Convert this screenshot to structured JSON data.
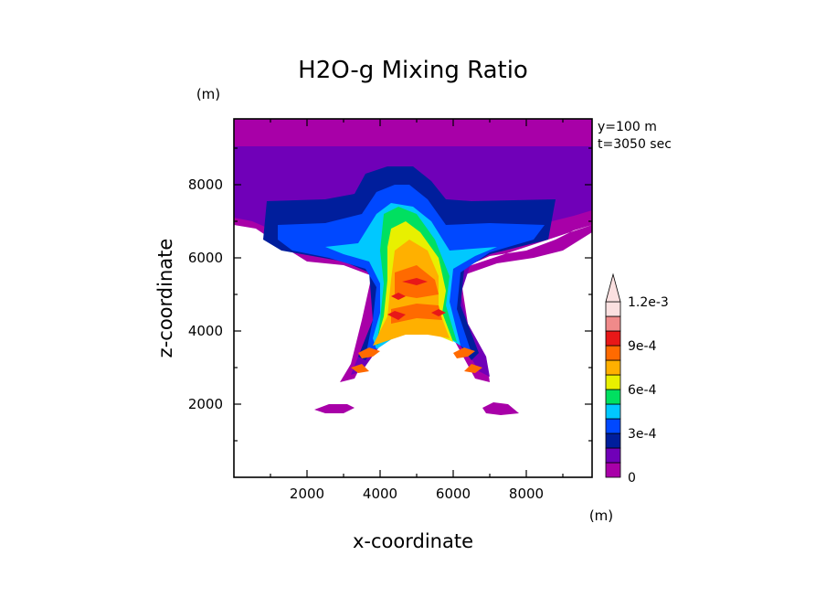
{
  "chart_data": {
    "type": "heatmap",
    "title": "H2O-g Mixing Ratio",
    "xlabel": "x-coordinate",
    "ylabel": "z-coordinate",
    "x_unit": "(m)",
    "y_unit": "(m)",
    "xlim": [
      0,
      9800
    ],
    "ylim": [
      0,
      9800
    ],
    "x_ticks": [
      "2000",
      "4000",
      "6000",
      "8000"
    ],
    "y_ticks": [
      "2000",
      "4000",
      "6000",
      "8000"
    ],
    "annotations": [
      "y=100 m",
      "t=3050 sec"
    ],
    "colorbar": {
      "levels": [
        0,
        0.00015,
        0.0003,
        0.00045,
        0.0006,
        0.00075,
        0.0009,
        0.00105,
        0.0012
      ],
      "tick_labels": [
        "0",
        "3e-4",
        "6e-4",
        "9e-4",
        "1.2e-3"
      ],
      "colors": [
        "#a800a8",
        "#7000b8",
        "#001e9c",
        "#0048ff",
        "#00c8ff",
        "#00e060",
        "#e8f000",
        "#ffb000",
        "#ff6a00",
        "#e81818",
        "#f08a8a",
        "#fbe0e0"
      ]
    },
    "regions": [
      {
        "level": 0,
        "points": [
          [
            0,
            9800
          ],
          [
            9800,
            9800
          ],
          [
            9800,
            6900
          ],
          [
            9300,
            6750
          ],
          [
            8800,
            6500
          ],
          [
            8000,
            6200
          ],
          [
            7000,
            6050
          ],
          [
            6200,
            5700
          ],
          [
            6000,
            3800
          ],
          [
            6600,
            2700
          ],
          [
            7000,
            2600
          ],
          [
            6900,
            3300
          ],
          [
            6400,
            4200
          ],
          [
            6200,
            5500
          ],
          [
            7200,
            5850
          ],
          [
            8200,
            6000
          ],
          [
            9000,
            6200
          ],
          [
            9800,
            6700
          ],
          [
            9800,
            6900
          ],
          [
            6200,
            5700
          ],
          [
            5400,
            5800
          ],
          [
            4400,
            5800
          ],
          [
            3800,
            5650
          ],
          [
            3500,
            4300
          ],
          [
            3200,
            3100
          ],
          [
            2900,
            2600
          ],
          [
            3300,
            2700
          ],
          [
            3700,
            3500
          ],
          [
            4000,
            4700
          ],
          [
            3800,
            5500
          ],
          [
            3000,
            5800
          ],
          [
            2000,
            5900
          ],
          [
            1200,
            6400
          ],
          [
            600,
            6800
          ],
          [
            0,
            6900
          ]
        ]
      },
      {
        "level": 0,
        "points": [
          [
            2200,
            1850
          ],
          [
            2600,
            2000
          ],
          [
            3100,
            2000
          ],
          [
            3300,
            1900
          ],
          [
            3000,
            1750
          ],
          [
            2500,
            1750
          ]
        ]
      },
      {
        "level": 0,
        "points": [
          [
            6800,
            1900
          ],
          [
            7100,
            2050
          ],
          [
            7500,
            2000
          ],
          [
            7800,
            1750
          ],
          [
            7300,
            1700
          ],
          [
            6900,
            1750
          ]
        ]
      },
      {
        "level": 1,
        "points": [
          [
            0,
            9050
          ],
          [
            9800,
            9050
          ],
          [
            9800,
            7300
          ],
          [
            9300,
            7150
          ],
          [
            8700,
            7000
          ],
          [
            8000,
            6600
          ],
          [
            7300,
            6200
          ],
          [
            6500,
            5900
          ],
          [
            6200,
            5000
          ],
          [
            6400,
            4200
          ],
          [
            6900,
            3300
          ],
          [
            7000,
            2750
          ],
          [
            6700,
            2900
          ],
          [
            6300,
            3600
          ],
          [
            5900,
            4100
          ],
          [
            5400,
            4300
          ],
          [
            4900,
            4300
          ],
          [
            4400,
            4100
          ],
          [
            4000,
            3600
          ],
          [
            3500,
            2900
          ],
          [
            3200,
            2800
          ],
          [
            3400,
            3300
          ],
          [
            3800,
            4200
          ],
          [
            3900,
            5000
          ],
          [
            3700,
            5700
          ],
          [
            3000,
            6000
          ],
          [
            2000,
            6100
          ],
          [
            1200,
            6700
          ],
          [
            500,
            7000
          ],
          [
            0,
            7100
          ]
        ]
      },
      {
        "level": 2,
        "points": [
          [
            900,
            7550
          ],
          [
            2500,
            7600
          ],
          [
            3300,
            7750
          ],
          [
            3600,
            8300
          ],
          [
            4200,
            8500
          ],
          [
            4900,
            8500
          ],
          [
            5400,
            8100
          ],
          [
            5800,
            7600
          ],
          [
            6500,
            7550
          ],
          [
            8800,
            7600
          ],
          [
            8600,
            6500
          ],
          [
            7000,
            6100
          ],
          [
            6300,
            5700
          ],
          [
            6200,
            4700
          ],
          [
            6700,
            3400
          ],
          [
            6500,
            3200
          ],
          [
            5900,
            4000
          ],
          [
            5300,
            4200
          ],
          [
            4600,
            4200
          ],
          [
            4000,
            3800
          ],
          [
            3600,
            3200
          ],
          [
            3400,
            3300
          ],
          [
            3800,
            4300
          ],
          [
            3700,
            5600
          ],
          [
            3000,
            5900
          ],
          [
            1300,
            6200
          ],
          [
            800,
            6500
          ]
        ]
      },
      {
        "level": 3,
        "points": [
          [
            1200,
            6900
          ],
          [
            2500,
            6950
          ],
          [
            3500,
            7200
          ],
          [
            3900,
            7800
          ],
          [
            4400,
            8000
          ],
          [
            4800,
            8000
          ],
          [
            5300,
            7600
          ],
          [
            5800,
            6900
          ],
          [
            7000,
            6950
          ],
          [
            8500,
            6900
          ],
          [
            8200,
            6500
          ],
          [
            7000,
            6150
          ],
          [
            6200,
            5600
          ],
          [
            6100,
            4600
          ],
          [
            6500,
            3400
          ],
          [
            5900,
            3800
          ],
          [
            5300,
            4050
          ],
          [
            4700,
            4050
          ],
          [
            4100,
            3700
          ],
          [
            3600,
            3300
          ],
          [
            3800,
            4300
          ],
          [
            3900,
            5200
          ],
          [
            3600,
            5700
          ],
          [
            2600,
            6000
          ],
          [
            1600,
            6200
          ],
          [
            1200,
            6500
          ]
        ]
      },
      {
        "level": 4,
        "points": [
          [
            2500,
            6300
          ],
          [
            3400,
            6400
          ],
          [
            3900,
            7200
          ],
          [
            4300,
            7500
          ],
          [
            4900,
            7400
          ],
          [
            5400,
            7000
          ],
          [
            5900,
            6200
          ],
          [
            7200,
            6300
          ],
          [
            6600,
            6050
          ],
          [
            6000,
            5700
          ],
          [
            5900,
            4800
          ],
          [
            6200,
            3600
          ],
          [
            5700,
            3900
          ],
          [
            5100,
            4100
          ],
          [
            4500,
            3900
          ],
          [
            3900,
            3500
          ],
          [
            3800,
            3800
          ],
          [
            4000,
            4500
          ],
          [
            4000,
            5300
          ],
          [
            3700,
            5900
          ],
          [
            3000,
            6100
          ]
        ]
      },
      {
        "level": 5,
        "points": [
          [
            4100,
            7200
          ],
          [
            4500,
            7400
          ],
          [
            5000,
            7200
          ],
          [
            5500,
            6500
          ],
          [
            5900,
            5500
          ],
          [
            5800,
            4700
          ],
          [
            6100,
            3700
          ],
          [
            5500,
            4000
          ],
          [
            4900,
            4100
          ],
          [
            4300,
            3900
          ],
          [
            3900,
            3600
          ],
          [
            4000,
            4300
          ],
          [
            4100,
            5300
          ],
          [
            4000,
            6200
          ]
        ]
      },
      {
        "level": 6,
        "points": [
          [
            4300,
            6800
          ],
          [
            4700,
            7000
          ],
          [
            5100,
            6700
          ],
          [
            5600,
            6000
          ],
          [
            5800,
            5100
          ],
          [
            5700,
            4500
          ],
          [
            6000,
            3700
          ],
          [
            5400,
            3950
          ],
          [
            4800,
            4000
          ],
          [
            4200,
            3800
          ],
          [
            3900,
            3700
          ],
          [
            4100,
            4400
          ],
          [
            4200,
            5400
          ],
          [
            4200,
            6300
          ]
        ]
      },
      {
        "level": 7,
        "points": [
          [
            4400,
            6200
          ],
          [
            4800,
            6500
          ],
          [
            5300,
            6200
          ],
          [
            5600,
            5500
          ],
          [
            5600,
            4600
          ],
          [
            5900,
            3800
          ],
          [
            5300,
            3900
          ],
          [
            4700,
            3900
          ],
          [
            4100,
            3700
          ],
          [
            3800,
            3600
          ],
          [
            4200,
            4400
          ],
          [
            4300,
            5400
          ]
        ]
      },
      {
        "level": 8,
        "points": [
          [
            4400,
            5600
          ],
          [
            5000,
            5800
          ],
          [
            5500,
            5400
          ],
          [
            5600,
            5000
          ],
          [
            5000,
            4900
          ],
          [
            4400,
            5000
          ]
        ]
      },
      {
        "level": 8,
        "points": [
          [
            4300,
            4600
          ],
          [
            5000,
            4750
          ],
          [
            5600,
            4700
          ],
          [
            5700,
            4300
          ],
          [
            5000,
            4350
          ],
          [
            4300,
            4200
          ]
        ]
      },
      {
        "level": 8,
        "points": [
          [
            3400,
            3400
          ],
          [
            3700,
            3550
          ],
          [
            4000,
            3450
          ],
          [
            3800,
            3300
          ],
          [
            3500,
            3250
          ]
        ]
      },
      {
        "level": 8,
        "points": [
          [
            6000,
            3400
          ],
          [
            6300,
            3550
          ],
          [
            6600,
            3450
          ],
          [
            6400,
            3300
          ],
          [
            6100,
            3250
          ]
        ]
      },
      {
        "level": 8,
        "points": [
          [
            3200,
            3000
          ],
          [
            3500,
            3100
          ],
          [
            3700,
            2900
          ],
          [
            3400,
            2850
          ]
        ]
      },
      {
        "level": 8,
        "points": [
          [
            6300,
            2900
          ],
          [
            6500,
            3100
          ],
          [
            6800,
            3000
          ],
          [
            6600,
            2850
          ]
        ]
      },
      {
        "level": 9,
        "points": [
          [
            4200,
            4450
          ],
          [
            4400,
            4550
          ],
          [
            4700,
            4450
          ],
          [
            4500,
            4300
          ]
        ]
      },
      {
        "level": 9,
        "points": [
          [
            5400,
            4500
          ],
          [
            5600,
            4600
          ],
          [
            5800,
            4500
          ],
          [
            5600,
            4400
          ]
        ]
      },
      {
        "level": 9,
        "points": [
          [
            4600,
            5350
          ],
          [
            5000,
            5450
          ],
          [
            5300,
            5350
          ],
          [
            5000,
            5250
          ]
        ]
      },
      {
        "level": 9,
        "points": [
          [
            4300,
            4950
          ],
          [
            4500,
            5050
          ],
          [
            4700,
            4950
          ],
          [
            4500,
            4850
          ]
        ]
      }
    ]
  }
}
